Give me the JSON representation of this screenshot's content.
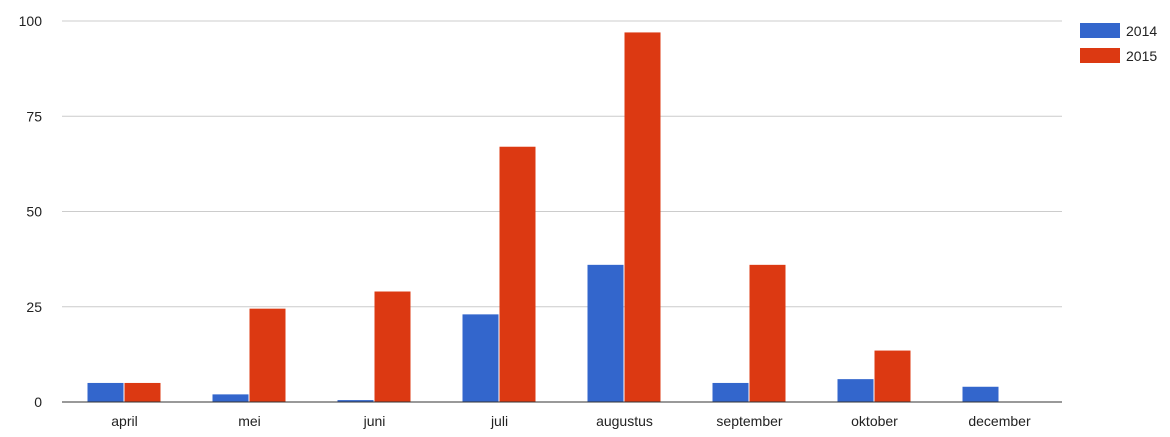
{
  "chart_data": {
    "type": "bar",
    "categories": [
      "april",
      "mei",
      "juni",
      "juli",
      "augustus",
      "september",
      "oktober",
      "december"
    ],
    "series": [
      {
        "name": "2014",
        "color": "#3366cc",
        "values": [
          5,
          2,
          0.5,
          23,
          36,
          5,
          6,
          4
        ]
      },
      {
        "name": "2015",
        "color": "#dc3912",
        "values": [
          5,
          24.5,
          29,
          67,
          97,
          36,
          13.5,
          0
        ]
      }
    ],
    "ylim": [
      0,
      100
    ],
    "yticks": [
      0,
      25,
      50,
      75,
      100
    ],
    "grid": true,
    "legend_position": "right-top",
    "title": "",
    "xlabel": "",
    "ylabel": ""
  }
}
